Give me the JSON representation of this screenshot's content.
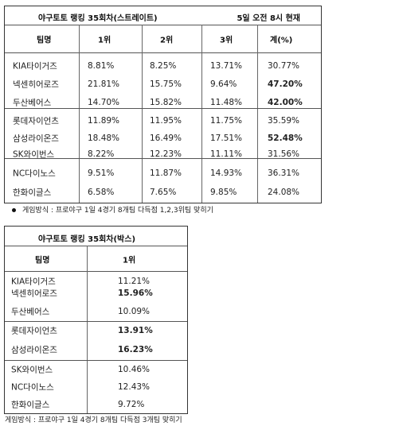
{
  "table1": {
    "title": "야구토토 랭킹 35회차(스트레이트)",
    "time": "5일 오전 8시 현재",
    "headers": [
      "팀명",
      "1위",
      "2위",
      "3위",
      "계(%)"
    ],
    "rows": [
      {
        "team": "KIA타이거즈",
        "p1": "8.81%",
        "p2": "8.25%",
        "p3": "13.71%",
        "total": "30.77%"
      },
      {
        "team": "넥센히어로즈",
        "p1": "21.81%",
        "p2": "15.75%",
        "p3": "9.64%",
        "total": "47.20%"
      },
      {
        "team": "두산베어스",
        "p1": "14.70%",
        "p2": "15.82%",
        "p3": "11.48%",
        "total": "42.00%"
      },
      {
        "team": "롯데자이언츠",
        "p1": "11.89%",
        "p2": "11.95%",
        "p3": "11.75%",
        "total": "35.59%"
      },
      {
        "team": "삼성라이온즈",
        "p1": "18.48%",
        "p2": "16.49%",
        "p3": "17.51%",
        "total": "52.48%"
      },
      {
        "team": "SK와이번스",
        "p1": "8.22%",
        "p2": "12.23%",
        "p3": "11.11%",
        "total": "31.56%"
      },
      {
        "team": "NC다이노스",
        "p1": "9.51%",
        "p2": "11.87%",
        "p3": "14.93%",
        "total": "36.31%"
      },
      {
        "team": "한화이글스",
        "p1": "6.58%",
        "p2": "7.65%",
        "p3": "9.85%",
        "total": "24.08%"
      }
    ],
    "note": "게임방식 : 프로야구 1일 4경기 8개팀 다득점 1,2,3위팀 맞히기"
  },
  "table2": {
    "title": "야구토토 랭킹 35회차(박스)",
    "headers": [
      "팀명",
      "1위"
    ],
    "rows": [
      {
        "team": "KIA타이거즈",
        "p1": "11.21%"
      },
      {
        "team": "넥센히어로즈",
        "p1": "15.96%"
      },
      {
        "team": "두산베어스",
        "p1": "10.09%"
      },
      {
        "team": "롯데자이언츠",
        "p1": "13.91%"
      },
      {
        "team": "삼성라이온즈",
        "p1": "16.23%"
      },
      {
        "team": "SK와이번스",
        "p1": "10.46%"
      },
      {
        "team": "NC다이노스",
        "p1": "12.43%"
      },
      {
        "team": "한화이글스",
        "p1": "9.72%"
      }
    ],
    "note": "게임방식 : 프로야구 1일 4경기 8개팀 다득점 3개팀 맞히기"
  }
}
